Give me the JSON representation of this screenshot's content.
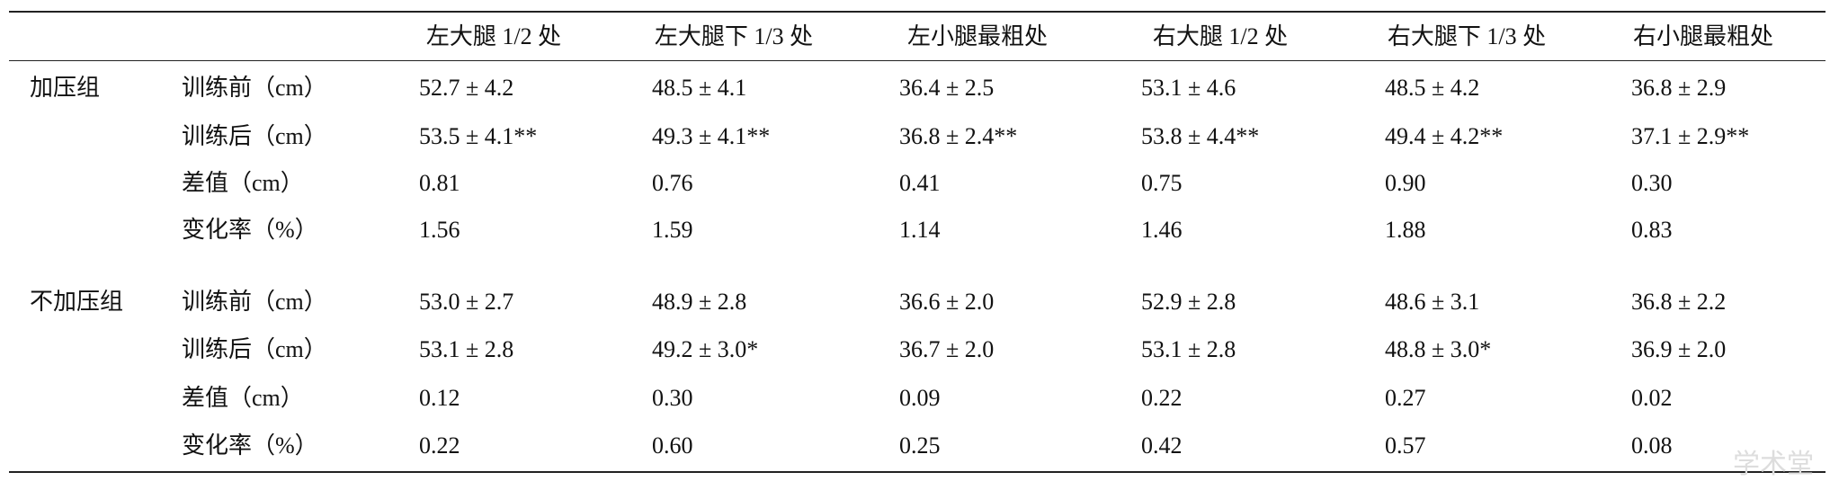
{
  "table": {
    "header": [
      "左大腿 1/2 处",
      "左大腿下 1/3 处",
      "左小腿最粗处",
      "右大腿 1/2 处",
      "右大腿下 1/3 处",
      "右小腿最粗处"
    ],
    "groups": [
      {
        "name": "加压组",
        "rows": [
          {
            "label": "训练前（cm）",
            "cells": [
              "52.7 ± 4.2",
              "48.5 ± 4.1",
              "36.4 ± 2.5",
              "53.1 ± 4.6",
              "48.5 ± 4.2",
              "36.8 ± 2.9"
            ]
          },
          {
            "label": "训练后（cm）",
            "cells": [
              "53.5 ± 4.1**",
              "49.3 ± 4.1**",
              "36.8 ± 2.4**",
              "53.8 ± 4.4**",
              "49.4 ± 4.2**",
              "37.1 ± 2.9**"
            ]
          },
          {
            "label": "差值（cm）",
            "cells": [
              "0.81",
              "0.76",
              "0.41",
              "0.75",
              "0.90",
              "0.30"
            ]
          },
          {
            "label": "变化率（%）",
            "cells": [
              "1.56",
              "1.59",
              "1.14",
              "1.46",
              "1.88",
              "0.83"
            ]
          }
        ]
      },
      {
        "name": "不加压组",
        "rows": [
          {
            "label": "训练前（cm）",
            "cells": [
              "53.0 ± 2.7",
              "48.9 ± 2.8",
              "36.6 ± 2.0",
              "52.9 ± 2.8",
              "48.6 ± 3.1",
              "36.8 ± 2.2"
            ]
          },
          {
            "label": "训练后（cm）",
            "cells": [
              "53.1 ± 2.8",
              "49.2 ± 3.0*",
              "36.7 ± 2.0",
              "53.1 ± 2.8",
              "48.8 ± 3.0*",
              "36.9 ± 2.0"
            ]
          },
          {
            "label": "差值（cm）",
            "cells": [
              "0.12",
              "0.30",
              "0.09",
              "0.22",
              "0.27",
              "0.02"
            ]
          },
          {
            "label": "变化率（%）",
            "cells": [
              "0.22",
              "0.60",
              "0.25",
              "0.42",
              "0.57",
              "0.08"
            ]
          }
        ]
      }
    ]
  },
  "watermark": "学术堂"
}
